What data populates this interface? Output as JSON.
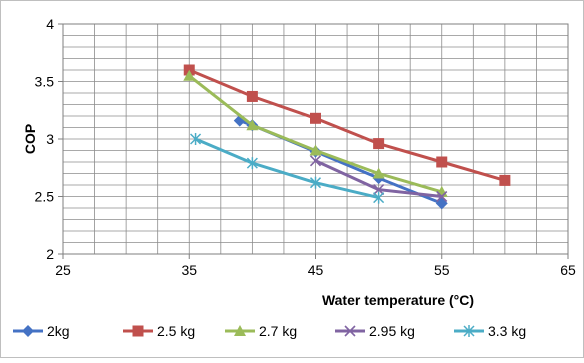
{
  "chart_data": {
    "type": "line",
    "title": "",
    "xlabel": "Water temperature (°C)",
    "ylabel": "COP",
    "xlim": [
      25,
      65
    ],
    "ylim": [
      2,
      4
    ],
    "xticks": [
      25,
      35,
      45,
      55,
      65
    ],
    "yticks": [
      2,
      2.5,
      3,
      3.5,
      4
    ],
    "xtick_labels": [
      "25",
      "35",
      "45",
      "55",
      "65"
    ],
    "ytick_labels": [
      "2",
      "2.5",
      "3",
      "3.5",
      "4"
    ],
    "grid": true,
    "legend_position": "bottom",
    "series": [
      {
        "name": "2kg",
        "color": "#4472C4",
        "marker": "diamond",
        "points": [
          [
            39,
            3.16
          ],
          [
            40,
            3.12
          ],
          [
            45,
            2.89
          ],
          [
            50,
            2.66
          ],
          [
            55,
            2.44
          ]
        ]
      },
      {
        "name": "2.5 kg",
        "color": "#C0504D",
        "marker": "square",
        "points": [
          [
            35,
            3.6
          ],
          [
            40,
            3.37
          ],
          [
            45,
            3.18
          ],
          [
            50,
            2.96
          ],
          [
            55,
            2.8
          ],
          [
            60,
            2.64
          ]
        ]
      },
      {
        "name": "2.7 kg",
        "color": "#9BBB59",
        "marker": "triangle",
        "points": [
          [
            35,
            3.55
          ],
          [
            40,
            3.12
          ],
          [
            45,
            2.9
          ],
          [
            50,
            2.7
          ],
          [
            55,
            2.54
          ]
        ]
      },
      {
        "name": "2.95 kg",
        "color": "#8064A2",
        "marker": "x",
        "points": [
          [
            45,
            2.81
          ],
          [
            50,
            2.56
          ],
          [
            55,
            2.5
          ]
        ]
      },
      {
        "name": "3.3 kg",
        "color": "#4BACC6",
        "marker": "asterisk",
        "points": [
          [
            35.5,
            3.0
          ],
          [
            40,
            2.79
          ],
          [
            45,
            2.62
          ],
          [
            50,
            2.49
          ]
        ]
      }
    ]
  }
}
